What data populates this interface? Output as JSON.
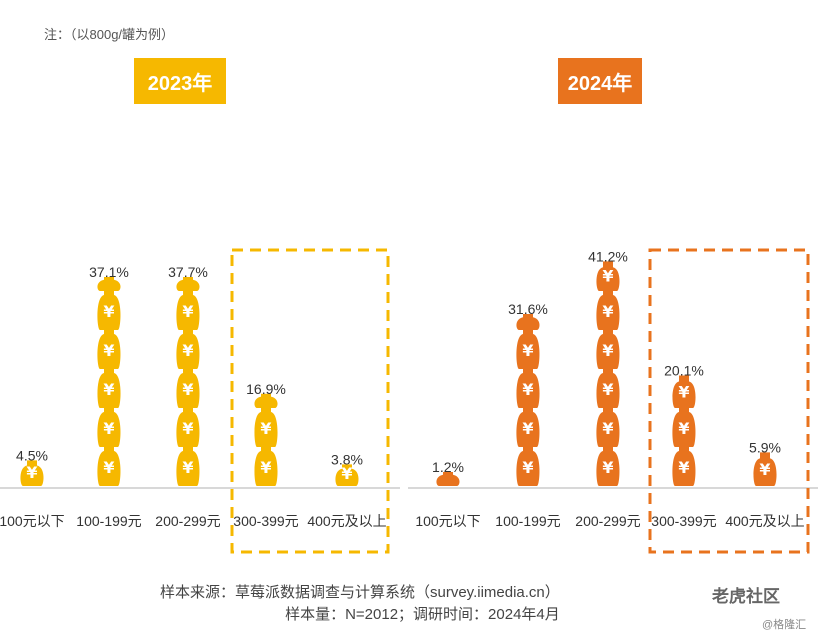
{
  "note": "注：（以800g/罐为例）",
  "colors": {
    "y2023": "#F6B800",
    "y2024": "#E8731E",
    "axis": "#cccccc"
  },
  "chart_data": [
    {
      "type": "bar",
      "title": "2023年",
      "categories": [
        "100元以下",
        "100-199元",
        "200-299元",
        "300-399元",
        "400元及以上"
      ],
      "values": [
        4.5,
        37.1,
        37.7,
        16.9,
        3.8
      ],
      "labels": [
        "4.5%",
        "37.1%",
        "37.7%",
        "16.9%",
        "3.8%"
      ],
      "unit": "%",
      "highlight": [
        "300-399元",
        "400元及以上"
      ]
    },
    {
      "type": "bar",
      "title": "2024年",
      "categories": [
        "100元以下",
        "100-199元",
        "200-299元",
        "300-399元",
        "400元及以上"
      ],
      "values": [
        1.2,
        31.6,
        41.2,
        20.1,
        5.9
      ],
      "labels": [
        "1.2%",
        "31.6%",
        "41.2%",
        "20.1%",
        "5.9%"
      ],
      "unit": "%",
      "highlight": [
        "300-399元",
        "400元及以上"
      ]
    }
  ],
  "source": {
    "line1": "样本来源：草莓派数据调查与计算系统（survey.iimedia.cn）",
    "line2": "样本量：N=2012；调研时间：2024年4月"
  },
  "watermark": {
    "main": "老虎社区",
    "sub": "@格隆汇"
  }
}
